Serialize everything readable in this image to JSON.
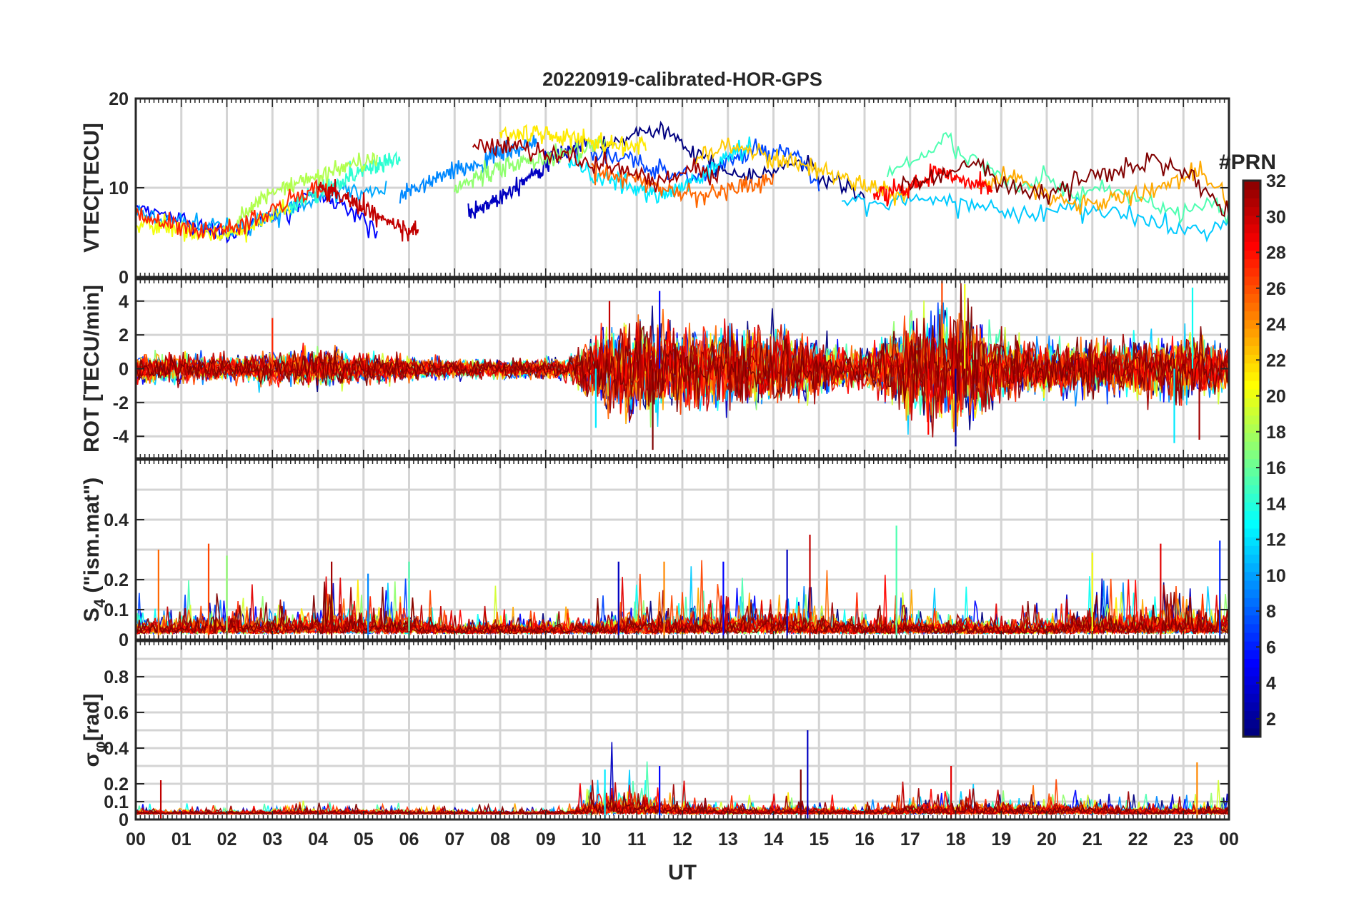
{
  "chart_data": {
    "title": "20220919-calibrated-HOR-GPS",
    "type": "line",
    "xlabel": "UT",
    "x_tick_labels": [
      "00",
      "01",
      "02",
      "03",
      "04",
      "05",
      "06",
      "07",
      "08",
      "09",
      "10",
      "11",
      "12",
      "13",
      "14",
      "15",
      "16",
      "17",
      "18",
      "19",
      "20",
      "21",
      "22",
      "23",
      "00"
    ],
    "xlim_hours": [
      0,
      24
    ],
    "colorbar": {
      "label": "#PRN",
      "range": [
        1,
        32
      ],
      "ticks": [
        2,
        4,
        6,
        8,
        10,
        12,
        14,
        16,
        18,
        20,
        22,
        24,
        26,
        28,
        30,
        32
      ],
      "tick_labels": [
        "2",
        "4",
        "6",
        "8",
        "10",
        "12",
        "14",
        "16",
        "18",
        "20",
        "22",
        "24",
        "26",
        "28",
        "30",
        "32"
      ],
      "colormap": "jet"
    },
    "panels": [
      {
        "id": "vtec",
        "ylabel": "VTEC[TECU]",
        "ylim": [
          0,
          20
        ],
        "y_ticks": [
          0,
          10,
          20
        ],
        "y_tick_labels": [
          "0",
          "10",
          "20"
        ],
        "y_grid": [
          0,
          10,
          20
        ],
        "series": [
          {
            "prn": 1,
            "x": [
              10.2,
              10.8,
              11.3,
              11.8,
              12.3,
              12.9,
              13.5,
              14.0,
              14.6,
              15.1,
              15.6,
              16.0
            ],
            "y": [
              14,
              15.5,
              17,
              16,
              14,
              12,
              11,
              12,
              13,
              11,
              10,
              9
            ]
          },
          {
            "prn": 3,
            "x": [
              7.3,
              8.0,
              8.8,
              9.4,
              9.9
            ],
            "y": [
              7,
              9,
              12,
              14,
              15
            ]
          },
          {
            "prn": 5,
            "x": [
              0,
              0.6,
              1.3,
              2.0,
              2.6,
              3.2,
              3.8,
              4.3,
              4.8,
              5.3
            ],
            "y": [
              8,
              7,
              6,
              4.5,
              6,
              7,
              9,
              9,
              7,
              5.5
            ]
          },
          {
            "prn": 7,
            "x": [
              10.0,
              10.8,
              11.6,
              12.3,
              13.0,
              13.6,
              14.1,
              14.6,
              15.0
            ],
            "y": [
              14,
              13,
              12,
              11,
              13,
              14,
              14,
              13,
              10
            ]
          },
          {
            "prn": 9,
            "x": [
              5.8,
              6.6,
              7.4,
              8.1,
              8.8
            ],
            "y": [
              9,
              11,
              12.5,
              14,
              15
            ]
          },
          {
            "prn": 10,
            "x": [
              0,
              0.8,
              1.6,
              2.4,
              3.2,
              4.0,
              4.8,
              5.5
            ],
            "y": [
              7,
              6.5,
              5.5,
              5.5,
              7.5,
              9,
              9.5,
              10
            ]
          },
          {
            "prn": 11,
            "x": [
              15.5,
              16.5,
              17.5,
              18.5,
              19.5,
              20.5,
              21.5,
              22.5,
              23.5,
              24
            ],
            "y": [
              9,
              8,
              9,
              8,
              7,
              8,
              7,
              6,
              5,
              6
            ]
          },
          {
            "prn": 12,
            "x": [
              9.5,
              10.2,
              10.9,
              11.6,
              12.3,
              12.9,
              13.5
            ],
            "y": [
              13,
              11,
              10,
              9,
              11,
              13,
              15
            ]
          },
          {
            "prn": 14,
            "x": [
              3.4,
              4.2,
              5.0,
              5.8
            ],
            "y": [
              8,
              10,
              12,
              13.5
            ]
          },
          {
            "prn": 15,
            "x": [
              16.5,
              17.0,
              17.5,
              17.8,
              18.2,
              18.8,
              19.4,
              20.0,
              20.6,
              21.2,
              21.8,
              22.4,
              23.0,
              23.6,
              24
            ],
            "y": [
              12,
              13,
              14,
              16,
              13,
              12,
              10,
              11,
              9,
              10,
              9,
              8,
              7,
              8,
              6.5
            ]
          },
          {
            "prn": 17,
            "x": [
              7.0,
              7.9,
              8.7,
              9.5,
              10.3
            ],
            "y": [
              10,
              12,
              13,
              14,
              15
            ]
          },
          {
            "prn": 18,
            "x": [
              2.0,
              2.6,
              3.2,
              3.9,
              4.6,
              5.3
            ],
            "y": [
              5,
              8,
              10,
              11,
              12.5,
              13
            ]
          },
          {
            "prn": 20,
            "x": [
              0,
              0.7,
              1.4,
              2.1,
              2.8,
              3.4
            ],
            "y": [
              6,
              5.5,
              5,
              4.5,
              6.5,
              8
            ]
          },
          {
            "prn": 21,
            "x": [
              8.0,
              8.8,
              9.6,
              10.4,
              11.2
            ],
            "y": [
              16,
              16,
              15.5,
              15,
              14.5
            ]
          },
          {
            "prn": 22,
            "x": [
              12.3,
              12.9,
              13.6,
              14.3,
              15.0,
              15.6,
              16.3,
              17.0
            ],
            "y": [
              13,
              15,
              14,
              13,
              12,
              11,
              10,
              9
            ]
          },
          {
            "prn": 23,
            "x": [
              18.5,
              19.3,
              20.1,
              20.9,
              21.7,
              22.5,
              23.3,
              24
            ],
            "y": [
              10,
              11,
              9,
              8,
              9,
              10,
              12,
              9
            ]
          },
          {
            "prn": 25,
            "x": [
              10.0,
              10.8,
              11.6,
              12.4,
              13.2,
              14.0
            ],
            "y": [
              12,
              11,
              10,
              9,
              10,
              11
            ]
          },
          {
            "prn": 27,
            "x": [
              0,
              0.7,
              1.4,
              2.1,
              2.8,
              3.5,
              4.3
            ],
            "y": [
              7,
              6,
              5,
              5.5,
              7,
              9,
              10
            ]
          },
          {
            "prn": 28,
            "x": [
              16.2,
              17.0,
              17.6,
              18.2,
              18.8
            ],
            "y": [
              9,
              10,
              12,
              11,
              10
            ]
          },
          {
            "prn": 30,
            "x": [
              4.0,
              4.6,
              5.2,
              5.8,
              6.2
            ],
            "y": [
              10,
              9,
              7,
              5.5,
              5
            ]
          },
          {
            "prn": 31,
            "x": [
              7.4,
              8.2,
              9.0,
              9.8,
              10.6,
              11.4,
              12.2,
              12.8
            ],
            "y": [
              15,
              14.5,
              14,
              13,
              12,
              11,
              12,
              11
            ]
          },
          {
            "prn": 32,
            "x": [
              16.8,
              17.6,
              18.4,
              19.2,
              20.0,
              20.8,
              21.6,
              22.4,
              23.2,
              24
            ],
            "y": [
              10,
              11,
              13,
              10,
              9,
              11,
              12,
              13,
              11,
              7
            ]
          }
        ]
      },
      {
        "id": "rot",
        "ylabel": "ROT [TECU/min]",
        "ylim": [
          -5.3,
          5.3
        ],
        "y_ticks": [
          -4,
          -2,
          0,
          2,
          4
        ],
        "y_tick_labels": [
          "-4",
          "-2",
          "0",
          "2",
          "4"
        ],
        "y_grid": [
          -4,
          -2,
          0,
          2,
          4
        ],
        "activity_envelope": {
          "x": [
            0,
            2,
            4,
            6,
            8,
            9.5,
            10,
            11,
            12,
            13,
            14,
            15,
            16,
            17,
            18,
            19,
            20,
            21,
            22,
            23,
            24
          ],
          "amp": [
            0.9,
            0.7,
            1.1,
            0.7,
            0.5,
            0.6,
            2.0,
            3.0,
            2.5,
            2.2,
            2.4,
            1.5,
            1.0,
            3.0,
            3.6,
            2.0,
            1.5,
            1.5,
            1.6,
            2.0,
            1.5
          ]
        },
        "peaks": [
          {
            "x": 11.35,
            "y": -4.8,
            "prn": 32
          },
          {
            "x": 11.5,
            "y": 4.6,
            "prn": 5
          },
          {
            "x": 10.4,
            "y": 4.0,
            "prn": 30
          },
          {
            "x": 17.4,
            "y": -3.9,
            "prn": 28
          },
          {
            "x": 17.7,
            "y": 5.2,
            "prn": 26
          },
          {
            "x": 18.0,
            "y": -4.6,
            "prn": 2
          },
          {
            "x": 18.2,
            "y": 5.0,
            "prn": 20
          },
          {
            "x": 23.2,
            "y": 4.8,
            "prn": 13
          },
          {
            "x": 23.35,
            "y": -4.2,
            "prn": 31
          },
          {
            "x": 22.8,
            "y": -4.4,
            "prn": 12
          },
          {
            "x": 10.1,
            "y": -3.5,
            "prn": 12
          },
          {
            "x": 3.0,
            "y": 3.0,
            "prn": 27
          }
        ]
      },
      {
        "id": "s4",
        "ylabel": "S4 (\"ism.mat\")",
        "ylabel_main": "S",
        "ylabel_sub": "4",
        "ylabel_rest": " (\"ism.mat\")",
        "ylim": [
          0,
          0.6
        ],
        "y_ticks": [
          0,
          0.1,
          0.2,
          0.4
        ],
        "y_tick_labels": [
          "0",
          "0.1",
          "0.2",
          "0.4"
        ],
        "y_grid": [
          0,
          0.1,
          0.2,
          0.3,
          0.4,
          0.5
        ],
        "activity_envelope": {
          "x": [
            0,
            1,
            2,
            3,
            4,
            5,
            6,
            7,
            8,
            9,
            10,
            11,
            12,
            13,
            14,
            15,
            16,
            17,
            18,
            19,
            20,
            21,
            22,
            23,
            24
          ],
          "amp": [
            0.1,
            0.12,
            0.14,
            0.12,
            0.16,
            0.14,
            0.16,
            0.07,
            0.09,
            0.08,
            0.1,
            0.14,
            0.14,
            0.16,
            0.18,
            0.14,
            0.08,
            0.14,
            0.1,
            0.08,
            0.1,
            0.16,
            0.16,
            0.18,
            0.16
          ]
        },
        "peaks": [
          {
            "x": 0.5,
            "y": 0.3,
            "prn": 25
          },
          {
            "x": 1.6,
            "y": 0.32,
            "prn": 26
          },
          {
            "x": 2.0,
            "y": 0.28,
            "prn": 17
          },
          {
            "x": 4.3,
            "y": 0.26,
            "prn": 31
          },
          {
            "x": 5.1,
            "y": 0.22,
            "prn": 9
          },
          {
            "x": 6.0,
            "y": 0.26,
            "prn": 15
          },
          {
            "x": 10.6,
            "y": 0.26,
            "prn": 3
          },
          {
            "x": 11.6,
            "y": 0.26,
            "prn": 24
          },
          {
            "x": 12.9,
            "y": 0.26,
            "prn": 5
          },
          {
            "x": 14.3,
            "y": 0.3,
            "prn": 3
          },
          {
            "x": 14.8,
            "y": 0.35,
            "prn": 30
          },
          {
            "x": 16.7,
            "y": 0.38,
            "prn": 15
          },
          {
            "x": 21.0,
            "y": 0.29,
            "prn": 20
          },
          {
            "x": 22.5,
            "y": 0.32,
            "prn": 29
          },
          {
            "x": 23.8,
            "y": 0.33,
            "prn": 6
          }
        ]
      },
      {
        "id": "sigma",
        "ylabel": "σφ[rad]",
        "ylabel_main": "σ",
        "ylabel_sub": "φ",
        "ylabel_rest": "[rad]",
        "ylim": [
          0,
          1
        ],
        "y_ticks": [
          0,
          0.1,
          0.2,
          0.4,
          0.6,
          0.8
        ],
        "y_tick_labels": [
          "0",
          "0.1",
          "0.2",
          "0.4",
          "0.6",
          "0.8"
        ],
        "y_grid": [
          0,
          0.1,
          0.2,
          0.3,
          0.4,
          0.5,
          0.6,
          0.7,
          0.8,
          0.9
        ],
        "activity_envelope": {
          "x": [
            0,
            1,
            2,
            3,
            4,
            5,
            6,
            7,
            8,
            9,
            9.5,
            10,
            11,
            12,
            13,
            14,
            15,
            16,
            17,
            18,
            19,
            20,
            21,
            22,
            23,
            24
          ],
          "amp": [
            0.05,
            0.05,
            0.04,
            0.05,
            0.06,
            0.06,
            0.05,
            0.04,
            0.04,
            0.04,
            0.05,
            0.2,
            0.22,
            0.12,
            0.08,
            0.1,
            0.08,
            0.06,
            0.12,
            0.14,
            0.12,
            0.14,
            0.12,
            0.1,
            0.08,
            0.1
          ]
        },
        "peaks": [
          {
            "x": 0.55,
            "y": 0.22,
            "prn": 30
          },
          {
            "x": 10.3,
            "y": 0.28,
            "prn": 12
          },
          {
            "x": 11.5,
            "y": 0.3,
            "prn": 5
          },
          {
            "x": 14.6,
            "y": 0.28,
            "prn": 32
          },
          {
            "x": 14.75,
            "y": 0.5,
            "prn": 3
          },
          {
            "x": 17.9,
            "y": 0.3,
            "prn": 29
          },
          {
            "x": 23.3,
            "y": 0.32,
            "prn": 24
          }
        ]
      }
    ]
  }
}
